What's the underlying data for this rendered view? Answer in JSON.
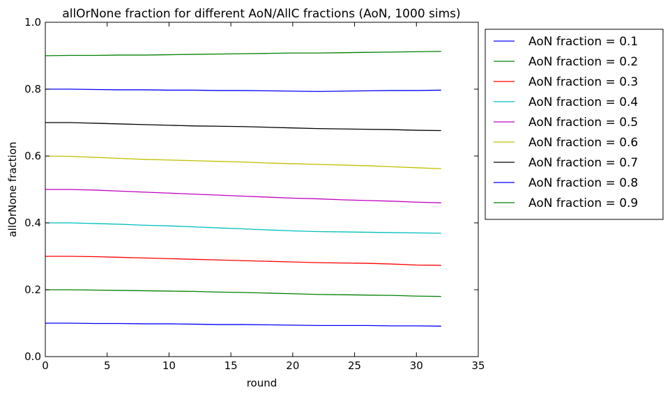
{
  "chart_data": {
    "type": "line",
    "title": "allOrNone fraction for different AoN/AllC fractions (AoN, 1000 sims)",
    "xlabel": "round",
    "ylabel": "allOrNone fraction",
    "xlim": [
      0,
      35
    ],
    "ylim": [
      0,
      1.0
    ],
    "xticks": [
      0,
      5,
      10,
      15,
      20,
      25,
      30,
      35
    ],
    "xtick_labels": [
      "0",
      "5",
      "10",
      "15",
      "20",
      "25",
      "30",
      "35"
    ],
    "yticks": [
      0,
      0.2,
      0.4,
      0.6,
      0.8,
      1.0
    ],
    "ytick_labels": [
      "0.0",
      "0.2",
      "0.4",
      "0.6",
      "0.8",
      "1.0"
    ],
    "grid": false,
    "legend_position": "outside-right-top",
    "x": [
      0,
      2,
      4,
      6,
      8,
      10,
      12,
      14,
      16,
      18,
      20,
      22,
      24,
      26,
      28,
      30,
      32
    ],
    "series": [
      {
        "name": "AoN fraction = 0.1",
        "color": "#0000ff",
        "values": [
          0.1,
          0.1,
          0.099,
          0.099,
          0.098,
          0.098,
          0.097,
          0.096,
          0.096,
          0.095,
          0.094,
          0.093,
          0.093,
          0.093,
          0.092,
          0.092,
          0.091
        ]
      },
      {
        "name": "AoN fraction = 0.2",
        "color": "#008000",
        "values": [
          0.2,
          0.2,
          0.199,
          0.198,
          0.197,
          0.196,
          0.195,
          0.193,
          0.192,
          0.19,
          0.188,
          0.186,
          0.185,
          0.184,
          0.183,
          0.181,
          0.18
        ]
      },
      {
        "name": "AoN fraction = 0.3",
        "color": "#ff0000",
        "values": [
          0.3,
          0.3,
          0.299,
          0.297,
          0.295,
          0.293,
          0.291,
          0.289,
          0.287,
          0.285,
          0.283,
          0.281,
          0.28,
          0.279,
          0.277,
          0.274,
          0.273
        ]
      },
      {
        "name": "AoN fraction = 0.4",
        "color": "#00bfbf",
        "values": [
          0.4,
          0.4,
          0.398,
          0.396,
          0.393,
          0.391,
          0.388,
          0.385,
          0.382,
          0.379,
          0.376,
          0.374,
          0.373,
          0.372,
          0.371,
          0.37,
          0.369
        ]
      },
      {
        "name": "AoN fraction = 0.5",
        "color": "#bf00bf",
        "values": [
          0.5,
          0.5,
          0.498,
          0.495,
          0.492,
          0.489,
          0.486,
          0.483,
          0.48,
          0.477,
          0.474,
          0.472,
          0.469,
          0.467,
          0.465,
          0.462,
          0.46
        ]
      },
      {
        "name": "AoN fraction = 0.6",
        "color": "#bfbf00",
        "values": [
          0.6,
          0.599,
          0.596,
          0.593,
          0.59,
          0.588,
          0.586,
          0.584,
          0.582,
          0.579,
          0.577,
          0.575,
          0.573,
          0.571,
          0.568,
          0.565,
          0.562
        ]
      },
      {
        "name": "AoN fraction = 0.7",
        "color": "#000000",
        "values": [
          0.7,
          0.7,
          0.698,
          0.696,
          0.694,
          0.692,
          0.69,
          0.689,
          0.688,
          0.686,
          0.684,
          0.682,
          0.681,
          0.68,
          0.679,
          0.677,
          0.676
        ]
      },
      {
        "name": "AoN fraction = 0.8",
        "color": "#0000ff",
        "values": [
          0.8,
          0.8,
          0.799,
          0.798,
          0.798,
          0.797,
          0.797,
          0.796,
          0.796,
          0.795,
          0.794,
          0.793,
          0.794,
          0.795,
          0.796,
          0.796,
          0.797
        ]
      },
      {
        "name": "AoN fraction = 0.9",
        "color": "#008000",
        "values": [
          0.9,
          0.901,
          0.901,
          0.902,
          0.902,
          0.903,
          0.904,
          0.905,
          0.906,
          0.907,
          0.908,
          0.908,
          0.909,
          0.91,
          0.911,
          0.912,
          0.913
        ]
      }
    ]
  }
}
